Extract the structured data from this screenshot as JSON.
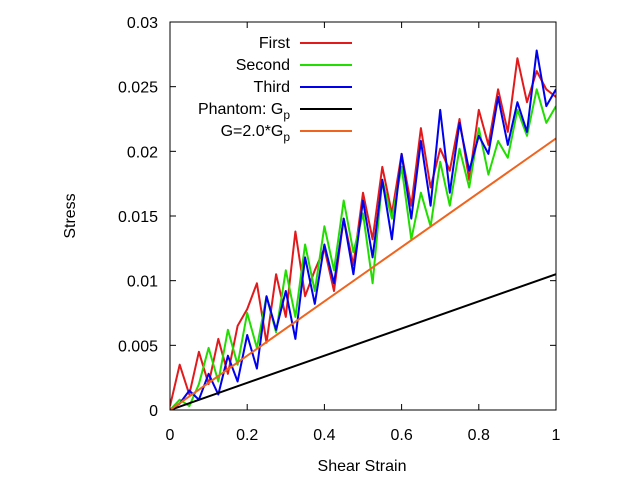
{
  "chart_data": {
    "type": "line",
    "title": "",
    "xlabel": "Shear Strain",
    "ylabel": "Stress",
    "xlim": [
      0,
      1
    ],
    "ylim": [
      0,
      0.03
    ],
    "grid": false,
    "legend_position": "top-left",
    "x_ticks": [
      {
        "value": 0,
        "label": "0"
      },
      {
        "value": 0.2,
        "label": "0.2"
      },
      {
        "value": 0.4,
        "label": "0.4"
      },
      {
        "value": 0.6,
        "label": "0.6"
      },
      {
        "value": 0.8,
        "label": "0.8"
      },
      {
        "value": 1,
        "label": "1"
      }
    ],
    "y_ticks": [
      {
        "value": 0,
        "label": "0"
      },
      {
        "value": 0.005,
        "label": "0.005"
      },
      {
        "value": 0.01,
        "label": "0.01"
      },
      {
        "value": 0.015,
        "label": "0.015"
      },
      {
        "value": 0.02,
        "label": "0.02"
      },
      {
        "value": 0.025,
        "label": "0.025"
      },
      {
        "value": 0.03,
        "label": "0.03"
      }
    ],
    "series": [
      {
        "name": "First",
        "color": "#e31a1c",
        "x": [
          0,
          0.025,
          0.05,
          0.075,
          0.1,
          0.125,
          0.15,
          0.175,
          0.2,
          0.225,
          0.25,
          0.275,
          0.3,
          0.325,
          0.35,
          0.375,
          0.4,
          0.425,
          0.45,
          0.475,
          0.5,
          0.525,
          0.55,
          0.575,
          0.6,
          0.625,
          0.65,
          0.675,
          0.7,
          0.725,
          0.75,
          0.775,
          0.8,
          0.825,
          0.85,
          0.875,
          0.9,
          0.925,
          0.95,
          0.975,
          1
        ],
        "y": [
          0.0003,
          0.0035,
          0.0012,
          0.0045,
          0.002,
          0.0055,
          0.0028,
          0.0065,
          0.0078,
          0.0098,
          0.0052,
          0.0105,
          0.0072,
          0.0138,
          0.0088,
          0.0108,
          0.0125,
          0.0092,
          0.0148,
          0.0112,
          0.0168,
          0.0132,
          0.0188,
          0.0152,
          0.0198,
          0.0158,
          0.0218,
          0.0172,
          0.0202,
          0.0185,
          0.0225,
          0.0178,
          0.0232,
          0.0205,
          0.0248,
          0.0215,
          0.0272,
          0.0238,
          0.0262,
          0.0248,
          0.0242
        ]
      },
      {
        "name": "Second",
        "color": "#22dd00",
        "x": [
          0,
          0.025,
          0.05,
          0.075,
          0.1,
          0.125,
          0.15,
          0.175,
          0.2,
          0.225,
          0.25,
          0.275,
          0.3,
          0.325,
          0.35,
          0.375,
          0.4,
          0.425,
          0.45,
          0.475,
          0.5,
          0.525,
          0.55,
          0.575,
          0.6,
          0.625,
          0.65,
          0.675,
          0.7,
          0.725,
          0.75,
          0.775,
          0.8,
          0.825,
          0.85,
          0.875,
          0.9,
          0.925,
          0.95,
          0.975,
          1
        ],
        "y": [
          0.0,
          0.0008,
          0.0003,
          0.002,
          0.0048,
          0.0022,
          0.0062,
          0.0035,
          0.0075,
          0.0048,
          0.0088,
          0.006,
          0.0108,
          0.0072,
          0.0128,
          0.0092,
          0.0142,
          0.0108,
          0.0162,
          0.0122,
          0.0152,
          0.0098,
          0.0178,
          0.0148,
          0.0188,
          0.0132,
          0.0168,
          0.0142,
          0.0192,
          0.0158,
          0.0202,
          0.0172,
          0.0218,
          0.0182,
          0.0208,
          0.0195,
          0.0232,
          0.0212,
          0.0248,
          0.0222,
          0.0235
        ]
      },
      {
        "name": "Third",
        "color": "#0000ee",
        "x": [
          0,
          0.025,
          0.05,
          0.075,
          0.1,
          0.125,
          0.15,
          0.175,
          0.2,
          0.225,
          0.25,
          0.275,
          0.3,
          0.325,
          0.35,
          0.375,
          0.4,
          0.425,
          0.45,
          0.475,
          0.5,
          0.525,
          0.55,
          0.575,
          0.6,
          0.625,
          0.65,
          0.675,
          0.7,
          0.725,
          0.75,
          0.775,
          0.8,
          0.825,
          0.85,
          0.875,
          0.9,
          0.925,
          0.95,
          0.975,
          1
        ],
        "y": [
          0.0,
          0.0005,
          0.0015,
          0.0008,
          0.0028,
          0.0012,
          0.0042,
          0.0022,
          0.0058,
          0.0032,
          0.0088,
          0.0062,
          0.0092,
          0.0055,
          0.0118,
          0.0082,
          0.0128,
          0.0098,
          0.0148,
          0.0105,
          0.0162,
          0.0118,
          0.0178,
          0.0132,
          0.0198,
          0.0148,
          0.0208,
          0.0158,
          0.0232,
          0.0168,
          0.0222,
          0.0185,
          0.0212,
          0.0198,
          0.0242,
          0.0205,
          0.0238,
          0.0215,
          0.0278,
          0.0235,
          0.0248
        ]
      },
      {
        "name": "Phantom: Gp",
        "color": "#000000",
        "x": [
          0,
          1
        ],
        "y": [
          0,
          0.0105
        ]
      },
      {
        "name": "G=2.0*Gp",
        "color": "#f0641e",
        "x": [
          0,
          1
        ],
        "y": [
          0,
          0.021
        ]
      }
    ]
  },
  "legend": [
    {
      "label_main": "First",
      "label_sub": "",
      "color": "#e31a1c"
    },
    {
      "label_main": "Second",
      "label_sub": "",
      "color": "#22dd00"
    },
    {
      "label_main": "Third",
      "label_sub": "",
      "color": "#0000ee"
    },
    {
      "label_main": "Phantom: G",
      "label_sub": "p",
      "color": "#000000"
    },
    {
      "label_main": "G=2.0*G",
      "label_sub": "p",
      "color": "#f0641e"
    }
  ]
}
